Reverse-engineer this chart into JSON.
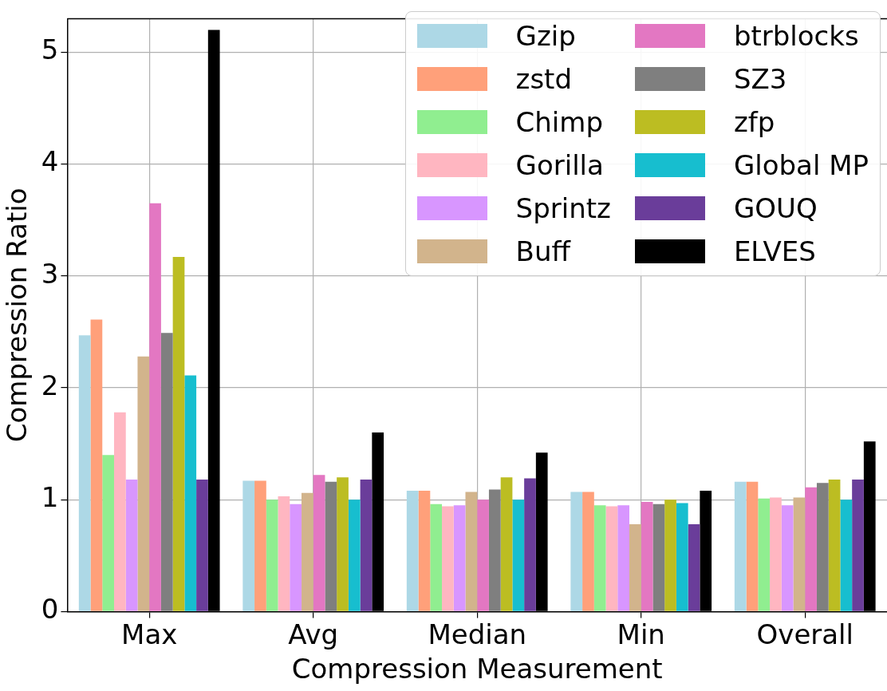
{
  "chart_data": {
    "type": "bar",
    "xlabel": "Compression Measurement",
    "ylabel": "Compression Ratio",
    "categories": [
      "Max",
      "Avg",
      "Median",
      "Min",
      "Overall"
    ],
    "ylim": [
      0,
      5.3
    ],
    "yticks": [
      0,
      1,
      2,
      3,
      4,
      5
    ],
    "grid": true,
    "legend": "top right",
    "series": [
      {
        "name": "Gzip",
        "color": "#add8e6",
        "values": [
          2.47,
          1.17,
          1.08,
          1.07,
          1.16
        ]
      },
      {
        "name": "zstd",
        "color": "#ffa07a",
        "values": [
          2.61,
          1.17,
          1.08,
          1.07,
          1.16
        ]
      },
      {
        "name": "Chimp",
        "color": "#90ee90",
        "values": [
          1.4,
          1.0,
          0.96,
          0.95,
          1.01
        ]
      },
      {
        "name": "Gorilla",
        "color": "#ffb6c1",
        "values": [
          1.78,
          1.03,
          0.94,
          0.94,
          1.02
        ]
      },
      {
        "name": "Sprintz",
        "color": "#d896ff",
        "values": [
          1.18,
          0.96,
          0.95,
          0.95,
          0.95
        ]
      },
      {
        "name": "Buff",
        "color": "#d2b48c",
        "values": [
          2.28,
          1.06,
          1.07,
          0.78,
          1.02
        ]
      },
      {
        "name": "btrblocks",
        "color": "#e377c2",
        "values": [
          3.65,
          1.22,
          1.0,
          0.98,
          1.11
        ]
      },
      {
        "name": "SZ3",
        "color": "#7f7f7f",
        "values": [
          2.49,
          1.16,
          1.09,
          0.96,
          1.15
        ]
      },
      {
        "name": "zfp",
        "color": "#bcbd22",
        "values": [
          3.17,
          1.2,
          1.2,
          1.0,
          1.18
        ]
      },
      {
        "name": "Global MP",
        "color": "#17becf",
        "values": [
          2.11,
          1.0,
          1.0,
          0.97,
          1.0
        ]
      },
      {
        "name": "GOUQ",
        "color": "#6a3d9a",
        "values": [
          1.18,
          1.18,
          1.19,
          0.78,
          1.18
        ]
      },
      {
        "name": "ELVES",
        "color": "#000000",
        "values": [
          5.2,
          1.6,
          1.42,
          1.08,
          1.52
        ]
      }
    ]
  }
}
